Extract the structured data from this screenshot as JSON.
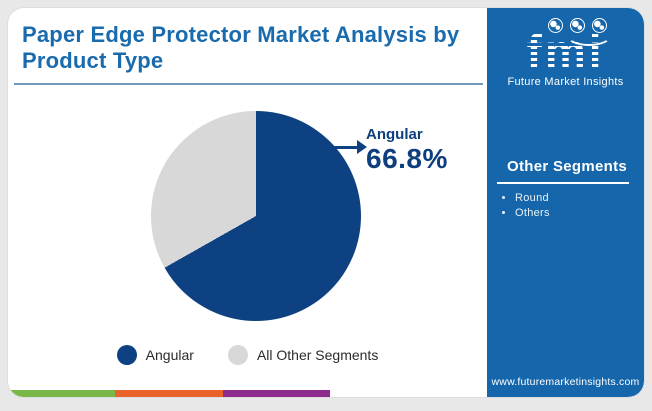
{
  "title": "Paper Edge Protector Market Analysis by Product Type",
  "brand": {
    "logo_text": "fmi",
    "logo_subtext": "Future Market Insights",
    "website": "www.futuremarketinsights.com"
  },
  "sidebar": {
    "heading": "Other Segments",
    "items": [
      {
        "label": "Round"
      },
      {
        "label": "Others"
      }
    ]
  },
  "chart_data": {
    "type": "pie",
    "title": "Paper Edge Protector Market Analysis by Product Type",
    "slices": [
      {
        "label": "Angular",
        "value": 66.8,
        "color": "#0d4181"
      },
      {
        "label": "All Other Segments",
        "value": 33.2,
        "color": "#d8d8d8"
      }
    ],
    "start_angle_deg": 0,
    "direction": "clockwise",
    "callout": {
      "label": "Angular",
      "value_text": "66.8%"
    },
    "legend": [
      "Angular",
      "All Other Segments"
    ],
    "legend_position": "bottom"
  },
  "colors": {
    "title_blue": "#1a6bad",
    "pie_navy": "#0d4181",
    "pie_gray": "#d8d8d8",
    "panel_blue": "#1566ab",
    "stripe_green": "#7ab648",
    "stripe_orange": "#e8622a",
    "stripe_purple": "#8d2b8d"
  }
}
